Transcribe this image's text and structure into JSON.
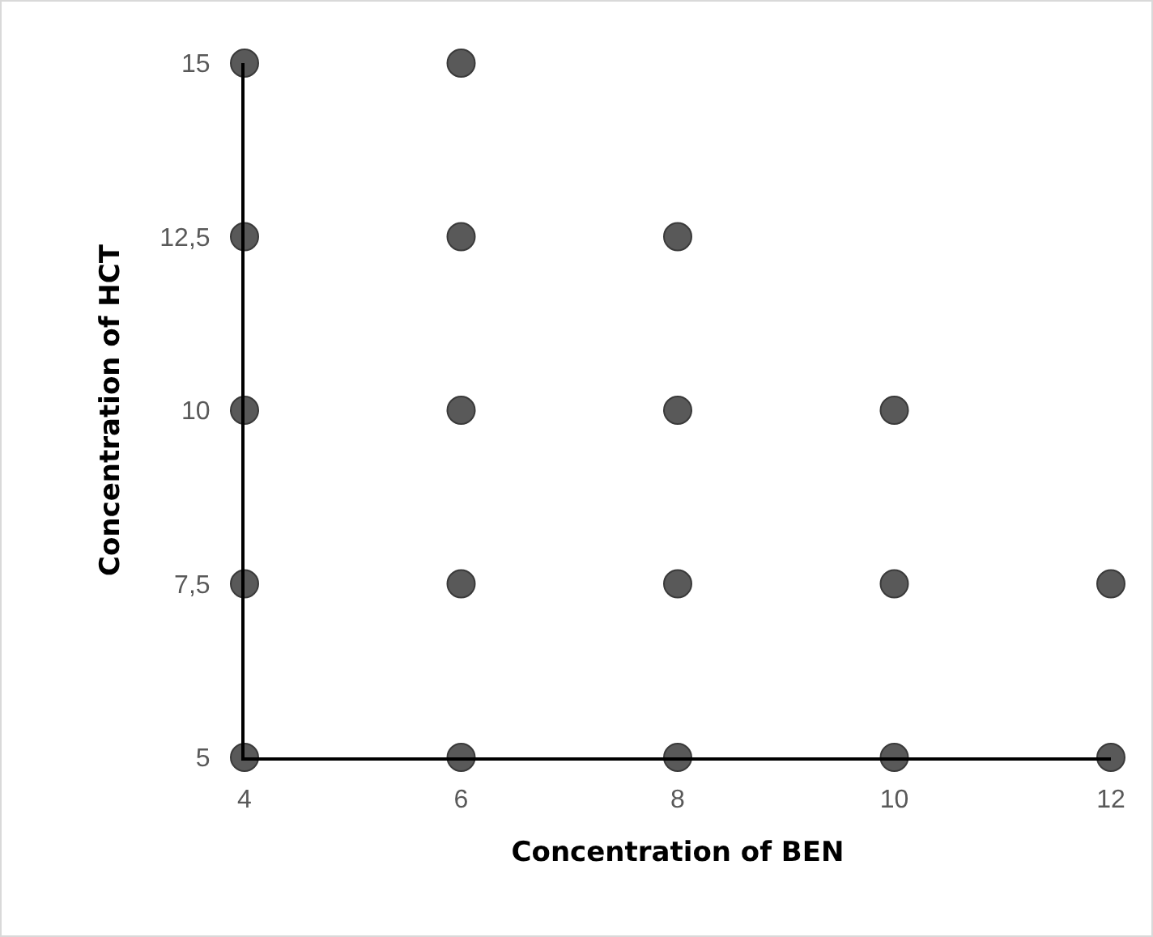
{
  "chart_data": {
    "type": "scatter",
    "xlabel": "Concentration of BEN",
    "ylabel": "Concentration of HCT",
    "x": [
      4,
      4,
      4,
      4,
      4,
      6,
      6,
      6,
      6,
      6,
      8,
      8,
      8,
      8,
      10,
      10,
      10,
      12,
      12
    ],
    "series": [
      {
        "color": "#595959",
        "values": [
          5,
          7.5,
          10,
          12.5,
          15,
          5,
          7.5,
          10,
          12.5,
          15,
          5,
          7.5,
          10,
          12.5,
          5,
          7.5,
          10,
          5,
          7.5
        ]
      }
    ],
    "xlim": [
      4,
      12
    ],
    "xticks": [
      4,
      6,
      8,
      10,
      12
    ],
    "ylim": [
      5,
      15
    ],
    "yticks": [
      5,
      {
        "value": 7.5,
        "label": "7,5"
      },
      10,
      {
        "value": 12.5,
        "label": "12,5"
      },
      15
    ],
    "marker": "circle",
    "grid": false
  }
}
